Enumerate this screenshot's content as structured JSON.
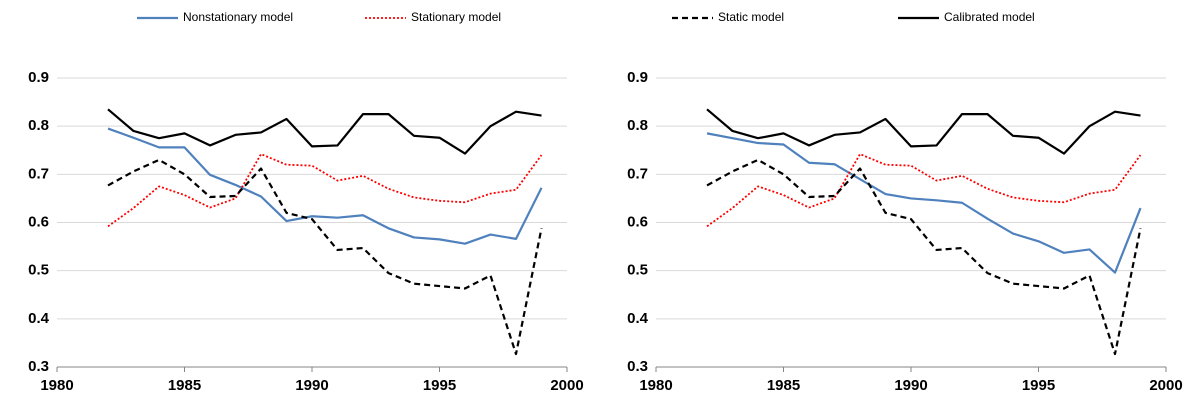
{
  "chart_data": [
    {
      "type": "line",
      "x": [
        1982,
        1983,
        1984,
        1985,
        1986,
        1987,
        1988,
        1989,
        1990,
        1991,
        1992,
        1993,
        1994,
        1995,
        1996,
        1997,
        1998,
        1999
      ],
      "xlim": [
        1980,
        2000
      ],
      "xticks": [
        1980,
        1985,
        1990,
        1995,
        2000
      ],
      "ylim": [
        0.3,
        0.9
      ],
      "yticks": [
        0.3,
        0.4,
        0.5,
        0.6,
        0.7,
        0.8,
        0.9
      ],
      "grid": true,
      "series": [
        {
          "name": "Nonstationary model",
          "color": "#4f81bd",
          "dash": "solid",
          "values": [
            0.795,
            0.776,
            0.756,
            0.756,
            0.699,
            0.678,
            0.654,
            0.603,
            0.613,
            0.61,
            0.615,
            0.588,
            0.569,
            0.565,
            0.556,
            0.575,
            0.566,
            0.672
          ]
        },
        {
          "name": "Stationary model",
          "color": "#ff0000",
          "dash": "dotted",
          "values": [
            0.592,
            0.63,
            0.675,
            0.657,
            0.631,
            0.65,
            0.742,
            0.72,
            0.718,
            0.687,
            0.697,
            0.67,
            0.652,
            0.645,
            0.642,
            0.66,
            0.668,
            0.74
          ]
        },
        {
          "name": "Static model",
          "color": "#000000",
          "dash": "dashed",
          "values": [
            0.677,
            0.706,
            0.73,
            0.7,
            0.653,
            0.655,
            0.712,
            0.62,
            0.607,
            0.543,
            0.547,
            0.495,
            0.473,
            0.468,
            0.463,
            0.49,
            0.327,
            0.588
          ]
        },
        {
          "name": "Calibrated model",
          "color": "#000000",
          "dash": "solid",
          "values": [
            0.835,
            0.79,
            0.775,
            0.785,
            0.76,
            0.782,
            0.787,
            0.815,
            0.758,
            0.76,
            0.825,
            0.825,
            0.78,
            0.776,
            0.743,
            0.8,
            0.83,
            0.822
          ]
        }
      ]
    },
    {
      "type": "line",
      "x": [
        1982,
        1983,
        1984,
        1985,
        1986,
        1987,
        1988,
        1989,
        1990,
        1991,
        1992,
        1993,
        1994,
        1995,
        1996,
        1997,
        1998,
        1999
      ],
      "xlim": [
        1980,
        2000
      ],
      "xticks": [
        1980,
        1985,
        1990,
        1995,
        2000
      ],
      "ylim": [
        0.3,
        0.9
      ],
      "yticks": [
        0.3,
        0.4,
        0.5,
        0.6,
        0.7,
        0.8,
        0.9
      ],
      "grid": true,
      "series": [
        {
          "color": "#4f81bd",
          "dash": "solid",
          "values": [
            0.785,
            0.775,
            0.765,
            0.762,
            0.724,
            0.721,
            0.69,
            0.659,
            0.65,
            0.646,
            0.641,
            0.608,
            0.577,
            0.561,
            0.537,
            0.544,
            0.496,
            0.63
          ]
        },
        {
          "color": "#ff0000",
          "dash": "dotted",
          "values": [
            0.592,
            0.63,
            0.675,
            0.657,
            0.631,
            0.65,
            0.742,
            0.72,
            0.718,
            0.687,
            0.697,
            0.67,
            0.652,
            0.645,
            0.642,
            0.66,
            0.668,
            0.74
          ]
        },
        {
          "color": "#000000",
          "dash": "dashed",
          "values": [
            0.677,
            0.706,
            0.73,
            0.7,
            0.653,
            0.655,
            0.712,
            0.62,
            0.607,
            0.543,
            0.547,
            0.495,
            0.473,
            0.468,
            0.463,
            0.49,
            0.327,
            0.588
          ]
        },
        {
          "color": "#000000",
          "dash": "solid",
          "values": [
            0.835,
            0.79,
            0.775,
            0.785,
            0.76,
            0.782,
            0.787,
            0.815,
            0.758,
            0.76,
            0.825,
            0.825,
            0.78,
            0.776,
            0.743,
            0.8,
            0.83,
            0.822
          ]
        }
      ]
    }
  ]
}
